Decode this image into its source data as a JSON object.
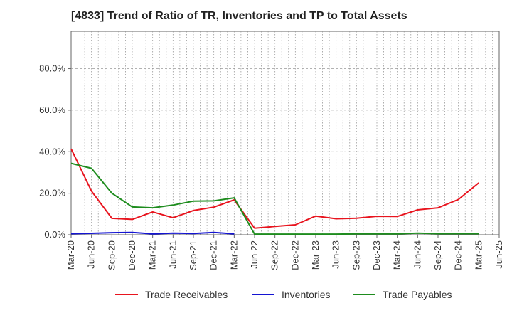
{
  "chart_data": {
    "type": "line",
    "title": "[4833]  Trend of Ratio of TR, Inventories and TP to Total Assets",
    "xlabel": "",
    "ylabel": "",
    "ylim": [
      0,
      0.98
    ],
    "y_ticks": [
      0,
      0.2,
      0.4,
      0.6,
      0.8
    ],
    "y_tick_labels": [
      "0.0%",
      "20.0%",
      "40.0%",
      "60.0%",
      "80.0%"
    ],
    "x_ticks": [
      "Mar-20",
      "Jun-20",
      "Sep-20",
      "Dec-20",
      "Mar-21",
      "Jun-21",
      "Sep-21",
      "Dec-21",
      "Mar-22",
      "Jun-22",
      "Sep-22",
      "Dec-22",
      "Mar-23",
      "Jun-23",
      "Sep-23",
      "Dec-23",
      "Mar-24",
      "Jun-24",
      "Sep-24",
      "Dec-24",
      "Mar-25",
      "Jun-25"
    ],
    "grid": true,
    "legend": "bottom",
    "series": [
      {
        "name": "Trade Receivables",
        "color": "#e8141e",
        "points": [
          [
            "Mar-20",
            0.414
          ],
          [
            "Jun-20",
            0.21
          ],
          [
            "Sep-20",
            0.079
          ],
          [
            "Dec-20",
            0.074
          ],
          [
            "Mar-21",
            0.11
          ],
          [
            "Jun-21",
            0.082
          ],
          [
            "Sep-21",
            0.117
          ],
          [
            "Dec-21",
            0.133
          ],
          [
            "Mar-22",
            0.168
          ],
          [
            "Jun-22",
            0.032
          ],
          [
            "Sep-22",
            0.04
          ],
          [
            "Dec-22",
            0.048
          ],
          [
            "Mar-23",
            0.09
          ],
          [
            "Jun-23",
            0.077
          ],
          [
            "Sep-23",
            0.08
          ],
          [
            "Dec-23",
            0.089
          ],
          [
            "Mar-24",
            0.088
          ],
          [
            "Jun-24",
            0.12
          ],
          [
            "Sep-24",
            0.13
          ],
          [
            "Dec-24",
            0.17
          ],
          [
            "Mar-25",
            0.25
          ]
        ]
      },
      {
        "name": "Inventories",
        "color": "#1414d2",
        "points": [
          [
            "Mar-20",
            0.005
          ],
          [
            "Jun-20",
            0.007
          ],
          [
            "Sep-20",
            0.01
          ],
          [
            "Dec-20",
            0.011
          ],
          [
            "Mar-21",
            0.004
          ],
          [
            "Jun-21",
            0.008
          ],
          [
            "Sep-21",
            0.006
          ],
          [
            "Dec-21",
            0.011
          ],
          [
            "Mar-22",
            0.004
          ]
        ]
      },
      {
        "name": "Trade Payables",
        "color": "#1e8c1e",
        "points": [
          [
            "Mar-20",
            0.344
          ],
          [
            "Jun-20",
            0.32
          ],
          [
            "Sep-20",
            0.2
          ],
          [
            "Dec-20",
            0.134
          ],
          [
            "Mar-21",
            0.13
          ],
          [
            "Jun-21",
            0.143
          ],
          [
            "Sep-21",
            0.162
          ],
          [
            "Dec-21",
            0.163
          ],
          [
            "Mar-22",
            0.178
          ],
          [
            "Jun-22",
            0.003
          ],
          [
            "Sep-22",
            0.003
          ],
          [
            "Dec-22",
            0.003
          ],
          [
            "Mar-23",
            0.003
          ],
          [
            "Jun-23",
            0.003
          ],
          [
            "Sep-23",
            0.004
          ],
          [
            "Dec-23",
            0.004
          ],
          [
            "Mar-24",
            0.004
          ],
          [
            "Jun-24",
            0.008
          ],
          [
            "Sep-24",
            0.005
          ],
          [
            "Dec-24",
            0.005
          ],
          [
            "Mar-25",
            0.005
          ]
        ]
      }
    ]
  }
}
